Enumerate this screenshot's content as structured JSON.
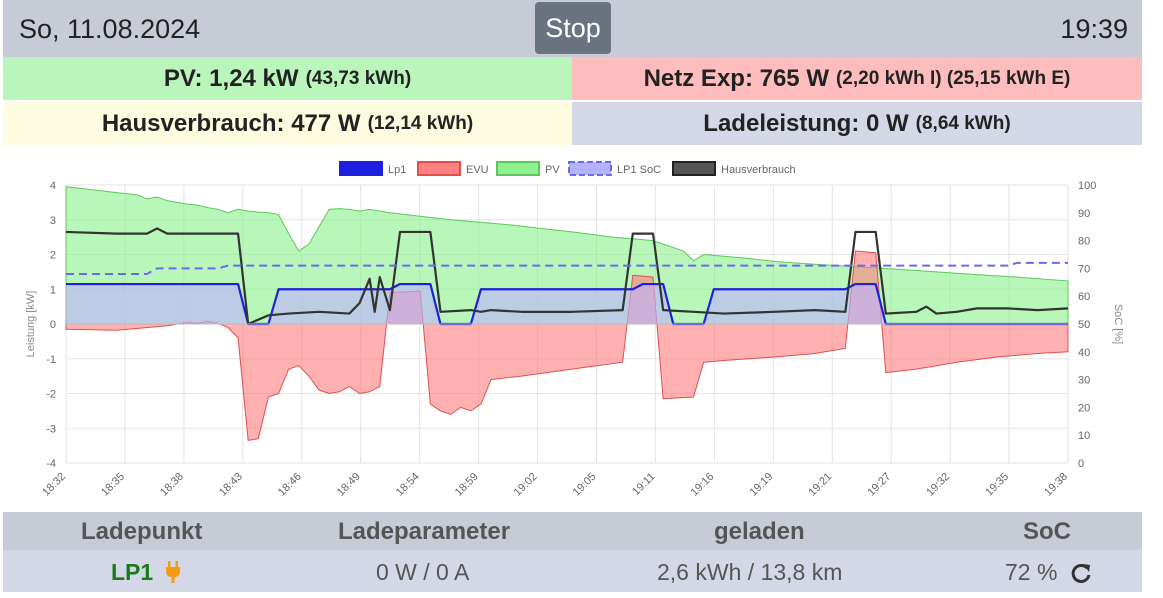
{
  "header": {
    "date": "So, 11.08.2024",
    "stop_label": "Stop",
    "time": "19:39"
  },
  "summary": {
    "pv_main": "PV: 1,24 kW",
    "pv_sub": "(43,73 kWh)",
    "netz_main": "Netz Exp: 765 W",
    "netz_sub": "(2,20 kWh I) (25,15 kWh E)",
    "haus_main": "Hausverbrauch: 477 W",
    "haus_sub": "(12,14 kWh)",
    "lade_main": "Ladeleistung: 0 W",
    "lade_sub": "(8,64 kWh)"
  },
  "chart_data": {
    "type": "line",
    "legend": [
      "Lp1",
      "EVU",
      "PV",
      "LP1 SoC",
      "Hausverbrauch"
    ],
    "legend_position": "top",
    "colors": {
      "lp1": "#1f1fde",
      "evu": "#ff8080",
      "pv": "#8ef08e",
      "soc": "#6a6aee",
      "haus": "#333333"
    },
    "ylabel": "Leistung [kW]",
    "y2label": "SoC [%]",
    "ylim": [
      -4,
      4
    ],
    "y2lim": [
      0,
      100
    ],
    "yticks": [
      "4",
      "3",
      "2",
      "1",
      "0",
      "-1",
      "-2",
      "-3",
      "-4"
    ],
    "y2ticks": [
      "100",
      "90",
      "80",
      "70",
      "60",
      "50",
      "40",
      "30",
      "20",
      "10",
      "0"
    ],
    "xticks": [
      "18:32",
      "18:35",
      "18:38",
      "18:43",
      "18:46",
      "18:49",
      "18:54",
      "18:59",
      "19:02",
      "19:05",
      "19:11",
      "19:16",
      "19:19",
      "19:21",
      "19:27",
      "19:32",
      "19:35",
      "19:38"
    ],
    "x_range_min": [
      0,
      67
    ],
    "grid": true,
    "series": [
      {
        "name": "PV",
        "axis": "left",
        "points": [
          [
            0,
            3.95
          ],
          [
            3,
            3.85
          ],
          [
            5,
            3.78
          ],
          [
            7,
            3.72
          ],
          [
            8,
            3.6
          ],
          [
            9,
            3.65
          ],
          [
            10,
            3.55
          ],
          [
            11,
            3.5
          ],
          [
            12,
            3.45
          ],
          [
            13,
            3.42
          ],
          [
            14,
            3.35
          ],
          [
            15,
            3.3
          ],
          [
            16,
            3.2
          ],
          [
            17,
            3.3
          ],
          [
            18,
            3.25
          ],
          [
            19,
            3.22
          ],
          [
            20,
            3.2
          ],
          [
            21,
            3.15
          ],
          [
            22,
            2.6
          ],
          [
            23,
            2.1
          ],
          [
            24,
            2.3
          ],
          [
            25,
            2.8
          ],
          [
            26,
            3.3
          ],
          [
            27,
            3.32
          ],
          [
            28,
            3.3
          ],
          [
            29,
            3.25
          ],
          [
            30,
            3.3
          ],
          [
            31,
            3.25
          ],
          [
            32,
            3.2
          ],
          [
            35,
            3.1
          ],
          [
            38,
            3.0
          ],
          [
            40,
            2.95
          ],
          [
            42,
            2.9
          ],
          [
            44,
            2.85
          ],
          [
            46,
            2.78
          ],
          [
            50,
            2.65
          ],
          [
            54,
            2.5
          ],
          [
            58,
            2.4
          ],
          [
            61,
            2.1
          ],
          [
            62,
            1.82
          ],
          [
            63,
            2.0
          ],
          [
            67,
            1.9
          ],
          [
            70,
            1.8
          ],
          [
            74,
            1.72
          ],
          [
            78,
            1.65
          ],
          [
            82,
            1.58
          ],
          [
            86,
            1.5
          ],
          [
            90,
            1.42
          ],
          [
            94,
            1.35
          ],
          [
            99,
            1.24
          ]
        ]
      },
      {
        "name": "EVU",
        "axis": "left",
        "points": [
          [
            0,
            -0.15
          ],
          [
            5,
            -0.18
          ],
          [
            10,
            -0.05
          ],
          [
            12,
            0.05
          ],
          [
            13,
            0.02
          ],
          [
            14,
            0.08
          ],
          [
            15,
            0.02
          ],
          [
            16,
            -0.1
          ],
          [
            17,
            -0.4
          ],
          [
            18,
            -3.35
          ],
          [
            19,
            -3.3
          ],
          [
            20,
            -2.1
          ],
          [
            21,
            -2.0
          ],
          [
            22,
            -1.3
          ],
          [
            23,
            -1.2
          ],
          [
            24,
            -1.5
          ],
          [
            25,
            -1.9
          ],
          [
            26,
            -2.0
          ],
          [
            27,
            -1.95
          ],
          [
            28,
            -1.8
          ],
          [
            29,
            -2.0
          ],
          [
            30,
            -1.95
          ],
          [
            31,
            -1.8
          ],
          [
            32,
            0.9
          ],
          [
            35,
            0.95
          ],
          [
            36,
            -2.3
          ],
          [
            37,
            -2.5
          ],
          [
            38,
            -2.6
          ],
          [
            39,
            -2.4
          ],
          [
            40,
            -2.5
          ],
          [
            41,
            -2.3
          ],
          [
            42,
            -1.6
          ],
          [
            45,
            -1.5
          ],
          [
            50,
            -1.3
          ],
          [
            55,
            -1.1
          ],
          [
            56,
            1.4
          ],
          [
            58,
            1.35
          ],
          [
            59,
            -2.15
          ],
          [
            62,
            -2.1
          ],
          [
            63,
            -1.1
          ],
          [
            65,
            -1.05
          ],
          [
            70,
            -0.95
          ],
          [
            74,
            -0.85
          ],
          [
            77,
            -0.7
          ],
          [
            78,
            2.1
          ],
          [
            80,
            2.05
          ],
          [
            81,
            -1.4
          ],
          [
            84,
            -1.3
          ],
          [
            86,
            -1.2
          ],
          [
            88,
            -1.1
          ],
          [
            92,
            -0.95
          ],
          [
            96,
            -0.85
          ],
          [
            99,
            -0.8
          ]
        ]
      },
      {
        "name": "Lp1",
        "axis": "left",
        "points": [
          [
            0,
            1.15
          ],
          [
            17,
            1.15
          ],
          [
            18,
            0.0
          ],
          [
            20,
            0.0
          ],
          [
            21,
            1.0
          ],
          [
            32,
            1.0
          ],
          [
            33,
            1.15
          ],
          [
            36,
            1.15
          ],
          [
            37,
            0.0
          ],
          [
            40,
            0.0
          ],
          [
            41,
            1.0
          ],
          [
            56,
            1.0
          ],
          [
            57,
            1.15
          ],
          [
            59,
            1.15
          ],
          [
            60,
            0.0
          ],
          [
            63,
            0.0
          ],
          [
            64,
            1.0
          ],
          [
            77,
            1.0
          ],
          [
            78,
            1.15
          ],
          [
            80,
            1.15
          ],
          [
            81,
            0.0
          ],
          [
            99,
            0.0
          ]
        ]
      },
      {
        "name": "Hausverbrauch",
        "axis": "left",
        "points": [
          [
            0,
            2.65
          ],
          [
            5,
            2.6
          ],
          [
            8,
            2.6
          ],
          [
            9,
            2.75
          ],
          [
            10,
            2.6
          ],
          [
            17,
            2.6
          ],
          [
            18,
            0.0
          ],
          [
            20,
            0.25
          ],
          [
            22,
            0.3
          ],
          [
            25,
            0.35
          ],
          [
            28,
            0.3
          ],
          [
            29,
            0.6
          ],
          [
            30,
            1.3
          ],
          [
            30.5,
            0.35
          ],
          [
            31,
            1.35
          ],
          [
            32,
            0.4
          ],
          [
            33,
            2.65
          ],
          [
            36,
            2.65
          ],
          [
            37,
            0.35
          ],
          [
            40,
            0.4
          ],
          [
            41,
            0.35
          ],
          [
            42,
            0.4
          ],
          [
            45,
            0.35
          ],
          [
            50,
            0.35
          ],
          [
            55,
            0.4
          ],
          [
            56,
            2.6
          ],
          [
            58,
            2.6
          ],
          [
            59,
            0.4
          ],
          [
            62,
            0.35
          ],
          [
            65,
            0.3
          ],
          [
            70,
            0.35
          ],
          [
            74,
            0.4
          ],
          [
            77,
            0.35
          ],
          [
            78,
            2.65
          ],
          [
            80,
            2.65
          ],
          [
            81,
            0.3
          ],
          [
            84,
            0.35
          ],
          [
            85,
            0.5
          ],
          [
            86,
            0.3
          ],
          [
            88,
            0.35
          ],
          [
            90,
            0.45
          ],
          [
            93,
            0.45
          ],
          [
            96,
            0.4
          ],
          [
            99,
            0.45
          ]
        ]
      },
      {
        "name": "LP1 SoC",
        "axis": "right",
        "points": [
          [
            0,
            68
          ],
          [
            8,
            68
          ],
          [
            9,
            70
          ],
          [
            15,
            70
          ],
          [
            16,
            71
          ],
          [
            93,
            71
          ],
          [
            94,
            72
          ],
          [
            99,
            72
          ]
        ]
      }
    ]
  },
  "table": {
    "headers": [
      "Ladepunkt",
      "Ladeparameter",
      "geladen",
      "SoC"
    ],
    "lp_name": "LP1",
    "params": "0 W / 0 A",
    "geladen": "2,6 kWh / 13,8 km",
    "soc": "72 %"
  }
}
